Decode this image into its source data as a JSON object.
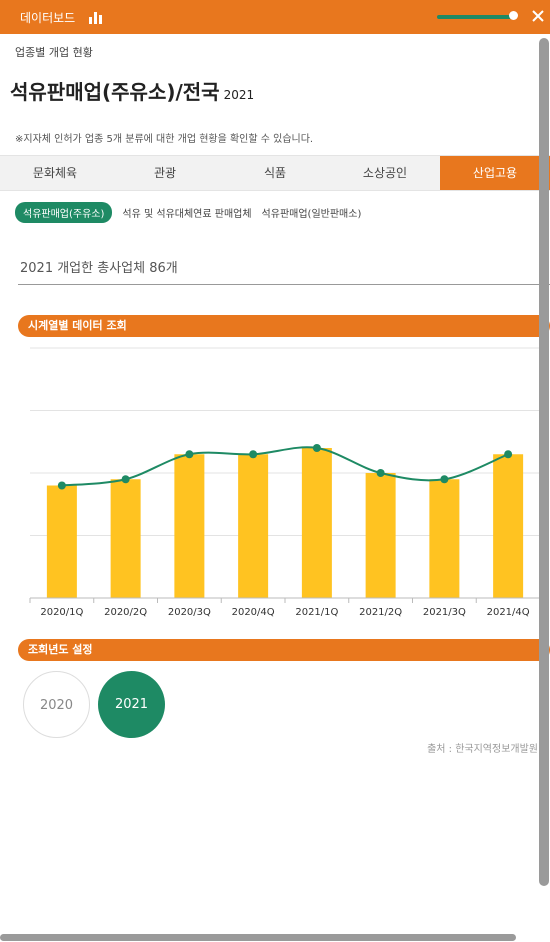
{
  "topbar": {
    "title": "데이터보드",
    "slider_fill_fraction": 0.95
  },
  "subtitle": "업종별 개업 현황",
  "heading": {
    "title": "석유판매업(주유소)/전국",
    "year": "2021"
  },
  "note": "※지자체 인허가 업종 5개 분류에 대한 개업 현황을 확인할 수 있습니다.",
  "tabs": [
    {
      "label": "문화체육",
      "active": false
    },
    {
      "label": "관광",
      "active": false
    },
    {
      "label": "식품",
      "active": false
    },
    {
      "label": "소상공인",
      "active": false
    },
    {
      "label": "산업고용",
      "active": true
    }
  ],
  "subtabs": [
    {
      "label": "석유판매업(주유소)",
      "active": true
    },
    {
      "label": "석유 및 석유대체연료 판매업체",
      "active": false
    },
    {
      "label": "석유판매업(일반판매소)",
      "active": false
    }
  ],
  "count_text": "2021 개업한 총사업체 86개",
  "sections": {
    "timeseries": "시계열별 데이터 조회",
    "year_setting": "조회년도 설정"
  },
  "chart_data": {
    "type": "bar",
    "categories": [
      "2020/1Q",
      "2020/2Q",
      "2020/3Q",
      "2020/4Q",
      "2021/1Q",
      "2021/2Q",
      "2021/3Q",
      "2021/4Q"
    ],
    "series": [
      {
        "type": "bar",
        "values": [
          18,
          19,
          23,
          23,
          24,
          20,
          19,
          23
        ]
      },
      {
        "type": "line",
        "values": [
          18,
          19,
          23,
          23,
          24,
          20,
          19,
          23
        ]
      }
    ],
    "ylim": [
      0,
      40
    ],
    "grid": true,
    "colors": {
      "bar": "#FFC321",
      "line": "#1E8A64"
    }
  },
  "years": [
    {
      "label": "2020",
      "active": false
    },
    {
      "label": "2021",
      "active": true
    }
  ],
  "source": "출처 : 한국지역정보개발원",
  "colors": {
    "accent": "#E8771E",
    "green": "#1E8A64",
    "bar": "#FFC321"
  }
}
